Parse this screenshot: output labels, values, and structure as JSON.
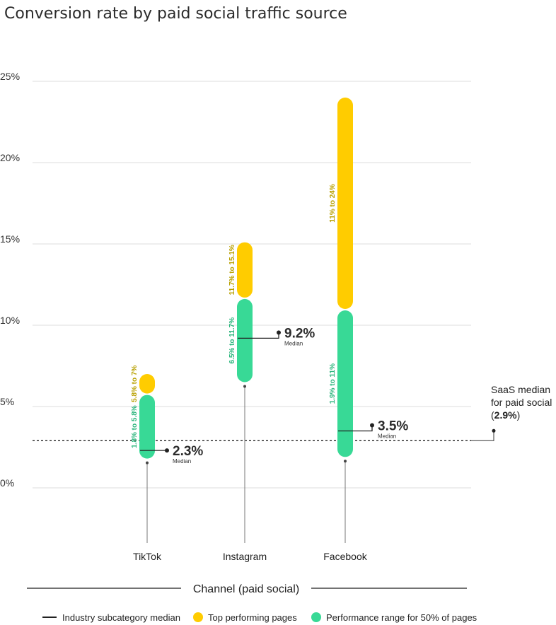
{
  "chart_data": {
    "type": "range",
    "title": "Conversion rate by paid social traffic source",
    "xlabel": "Channel (paid social)",
    "ylabel": "",
    "ylim": [
      -3,
      25
    ],
    "yticks": [
      0,
      5,
      10,
      15,
      20,
      25
    ],
    "ytick_labels": [
      "0%",
      "5%",
      "10%",
      "15%",
      "20%",
      "25%"
    ],
    "grid": true,
    "colors": {
      "top": "#ffcc00",
      "mid": "#38d996",
      "median": "#222222"
    },
    "categories": [
      "TikTok",
      "Instagram",
      "Facebook"
    ],
    "series": [
      {
        "name": "Top performing pages",
        "ranges": [
          [
            5.8,
            7
          ],
          [
            11.7,
            15.1
          ],
          [
            11,
            24
          ]
        ],
        "labels": [
          "5.8% to 7%",
          "11.7% to 15.1%",
          "11% to 24%"
        ]
      },
      {
        "name": "Performance range for 50% of pages",
        "ranges": [
          [
            1.8,
            5.8
          ],
          [
            6.5,
            11.7
          ],
          [
            1.9,
            11
          ]
        ],
        "labels": [
          "1.8% to 5.8%",
          "6.5% to 11.7%",
          "1.9% to 11%"
        ]
      }
    ],
    "medians": [
      2.3,
      9.2,
      3.5
    ],
    "median_labels": [
      "2.3%",
      "9.2%",
      "3.5%"
    ],
    "median_caption": "Median",
    "reference_line": {
      "value": 2.9,
      "label_line1": "SaaS median",
      "label_line2": "for paid social",
      "label_open": "(",
      "label_value": "2.9%",
      "label_close": ")"
    },
    "legend": [
      {
        "label": "Industry subcategory median",
        "marker": "line"
      },
      {
        "label": "Top performing pages",
        "marker": "dot-yellow"
      },
      {
        "label": "Performance range for 50% of pages",
        "marker": "dot-green"
      }
    ]
  }
}
